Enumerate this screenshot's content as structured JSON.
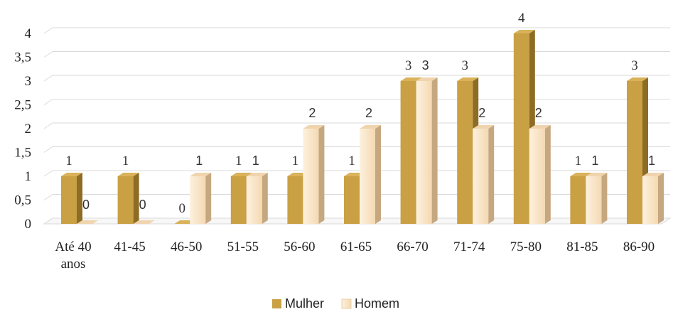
{
  "chart_data": {
    "type": "bar",
    "categories": [
      "Até 40 anos",
      "41-45",
      "46-50",
      "51-55",
      "56-60",
      "61-65",
      "66-70",
      "71-74",
      "75-80",
      "81-85",
      "86-90"
    ],
    "category_lines": [
      [
        "Até 40",
        "anos"
      ],
      [
        "41-45"
      ],
      [
        "46-50"
      ],
      [
        "51-55"
      ],
      [
        "56-60"
      ],
      [
        "61-65"
      ],
      [
        "66-70"
      ],
      [
        "71-74"
      ],
      [
        "75-80"
      ],
      [
        "81-85"
      ],
      [
        "86-90"
      ]
    ],
    "series": [
      {
        "name": "Mulher",
        "values": [
          1,
          1,
          0,
          1,
          1,
          1,
          3,
          3,
          4,
          1,
          3
        ],
        "color": "#c9a043"
      },
      {
        "name": "Homem",
        "values": [
          0,
          0,
          1,
          1,
          2,
          2,
          3,
          2,
          2,
          1,
          1
        ],
        "color": "#fbe6c7"
      }
    ],
    "y_ticks": [
      "0",
      "0,5",
      "1",
      "1,5",
      "2",
      "2,5",
      "3",
      "3,5",
      "4"
    ],
    "ylim": [
      0,
      4
    ],
    "grid": true,
    "legend_position": "bottom",
    "style": "3d-column"
  }
}
